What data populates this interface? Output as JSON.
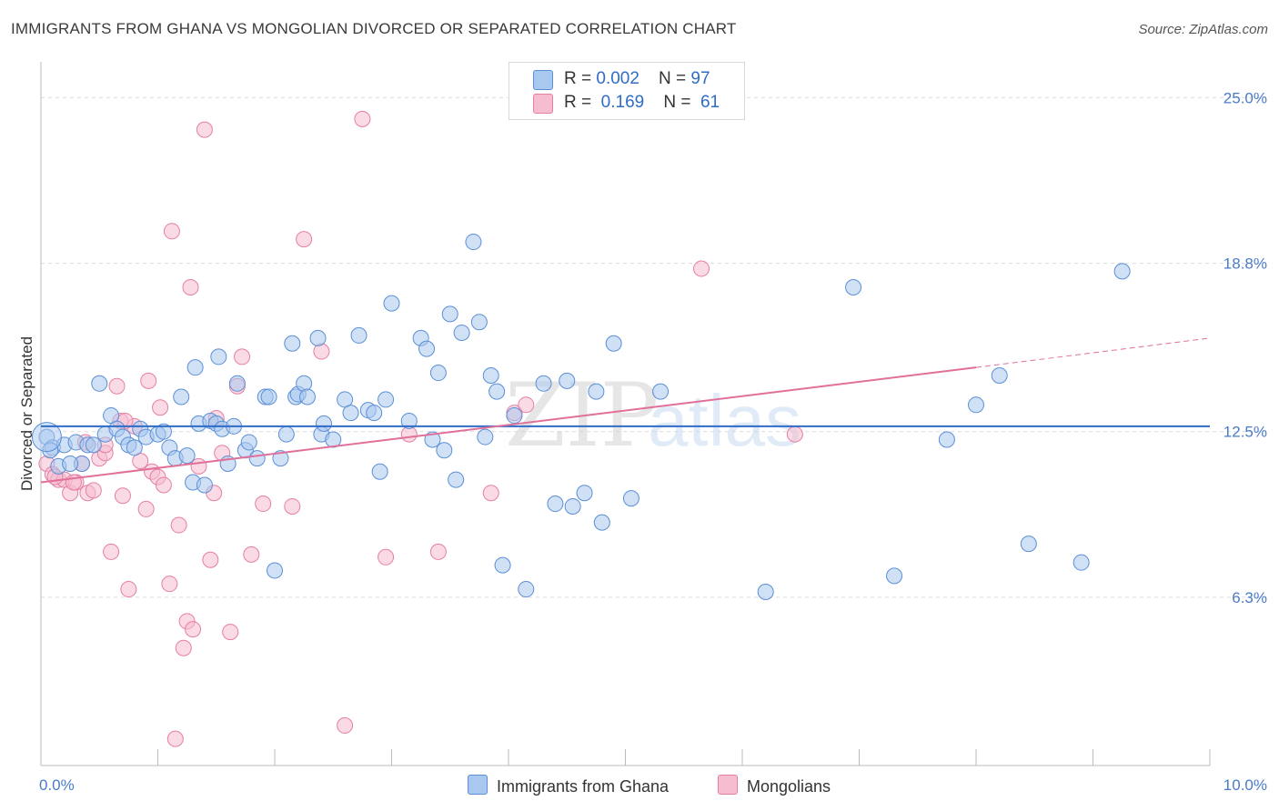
{
  "title": "IMMIGRANTS FROM GHANA VS MONGOLIAN DIVORCED OR SEPARATED CORRELATION CHART",
  "source": "Source: ZipAtlas.com",
  "watermark": {
    "zip": "ZIP",
    "atlas": "atlas"
  },
  "legend": {
    "rows": [
      {
        "r_label": "R = ",
        "r_value": "0.002",
        "n_label": "N = ",
        "n_value": "97"
      },
      {
        "r_label": "R = ",
        "r_value": "0.169",
        "n_label": "N = ",
        "n_value": "61"
      }
    ]
  },
  "bottom_legend": [
    "Immigrants from Ghana",
    "Mongolians"
  ],
  "colors": {
    "blue_fill": "#a9c8ef",
    "blue_stroke": "#5b8fd6",
    "blue_line": "#2f6cc7",
    "pink_fill": "#f6bcd0",
    "pink_stroke": "#e67fa3",
    "pink_line": "#e0709a",
    "grid": "#dcdcdc",
    "tick_label": "#4a7bc8"
  },
  "chart_data": {
    "type": "scatter",
    "title": "IMMIGRANTS FROM GHANA VS MONGOLIAN DIVORCED OR SEPARATED CORRELATION CHART",
    "xlabel": "",
    "ylabel": "Divorced or Separated",
    "xlim": [
      0,
      10
    ],
    "ylim": [
      0,
      26
    ],
    "x_tick_labels": [
      "0.0%",
      "10.0%"
    ],
    "y_ticks": [
      6.3,
      12.5,
      18.8,
      25.0
    ],
    "y_tick_labels": [
      "6.3%",
      "12.5%",
      "18.8%",
      "25.0%"
    ],
    "grid": true,
    "legend_placement": "top-center",
    "series": [
      {
        "name": "Immigrants from Ghana",
        "R": 0.002,
        "N": 97,
        "trend": {
          "x": [
            0,
            10
          ],
          "y": [
            12.7,
            12.7
          ]
        },
        "points": [
          [
            0.05,
            12.3
          ],
          [
            0.1,
            11.9
          ],
          [
            0.15,
            11.2
          ],
          [
            0.2,
            12.0
          ],
          [
            0.3,
            12.1
          ],
          [
            0.35,
            11.3
          ],
          [
            0.4,
            12.0
          ],
          [
            0.45,
            12.0
          ],
          [
            0.5,
            14.3
          ],
          [
            0.55,
            12.4
          ],
          [
            0.6,
            13.1
          ],
          [
            0.65,
            12.6
          ],
          [
            0.7,
            12.3
          ],
          [
            0.75,
            12.0
          ],
          [
            0.8,
            11.9
          ],
          [
            0.85,
            12.6
          ],
          [
            0.9,
            12.3
          ],
          [
            1.0,
            12.4
          ],
          [
            1.05,
            12.5
          ],
          [
            1.1,
            11.9
          ],
          [
            1.15,
            11.5
          ],
          [
            1.2,
            13.8
          ],
          [
            1.25,
            11.6
          ],
          [
            1.3,
            10.6
          ],
          [
            1.32,
            14.9
          ],
          [
            1.35,
            12.8
          ],
          [
            1.4,
            10.5
          ],
          [
            1.45,
            12.9
          ],
          [
            1.5,
            12.8
          ],
          [
            1.52,
            15.3
          ],
          [
            1.55,
            12.6
          ],
          [
            1.6,
            11.3
          ],
          [
            1.65,
            12.7
          ],
          [
            1.68,
            14.3
          ],
          [
            1.75,
            11.8
          ],
          [
            1.78,
            12.1
          ],
          [
            1.85,
            11.5
          ],
          [
            1.92,
            13.8
          ],
          [
            1.95,
            13.8
          ],
          [
            2.0,
            7.3
          ],
          [
            2.05,
            11.5
          ],
          [
            2.1,
            12.4
          ],
          [
            2.15,
            15.8
          ],
          [
            2.18,
            13.8
          ],
          [
            2.2,
            13.9
          ],
          [
            2.25,
            14.3
          ],
          [
            2.28,
            13.8
          ],
          [
            2.37,
            16.0
          ],
          [
            2.4,
            12.4
          ],
          [
            2.42,
            12.8
          ],
          [
            2.5,
            12.2
          ],
          [
            2.6,
            13.7
          ],
          [
            2.65,
            13.2
          ],
          [
            2.72,
            16.1
          ],
          [
            2.8,
            13.3
          ],
          [
            2.85,
            13.2
          ],
          [
            2.9,
            11.0
          ],
          [
            2.95,
            13.7
          ],
          [
            3.0,
            17.3
          ],
          [
            3.15,
            12.9
          ],
          [
            3.25,
            16.0
          ],
          [
            3.3,
            15.6
          ],
          [
            3.35,
            12.2
          ],
          [
            3.4,
            14.7
          ],
          [
            3.45,
            11.8
          ],
          [
            3.5,
            16.9
          ],
          [
            3.55,
            10.7
          ],
          [
            3.6,
            16.2
          ],
          [
            3.7,
            19.6
          ],
          [
            3.75,
            16.6
          ],
          [
            3.8,
            12.3
          ],
          [
            3.85,
            14.6
          ],
          [
            3.9,
            14.0
          ],
          [
            3.95,
            7.5
          ],
          [
            4.05,
            13.1
          ],
          [
            4.15,
            6.6
          ],
          [
            4.3,
            14.3
          ],
          [
            4.4,
            9.8
          ],
          [
            4.5,
            14.4
          ],
          [
            4.55,
            9.7
          ],
          [
            4.65,
            10.2
          ],
          [
            4.75,
            14.0
          ],
          [
            4.8,
            9.1
          ],
          [
            4.9,
            15.8
          ],
          [
            5.05,
            10.0
          ],
          [
            5.3,
            14.0
          ],
          [
            6.2,
            6.5
          ],
          [
            6.95,
            17.9
          ],
          [
            7.3,
            7.1
          ],
          [
            7.75,
            12.2
          ],
          [
            8.0,
            13.5
          ],
          [
            8.2,
            14.6
          ],
          [
            8.45,
            8.3
          ],
          [
            8.9,
            7.6
          ],
          [
            9.25,
            18.5
          ],
          [
            0.08,
            11.8
          ],
          [
            0.25,
            11.3
          ]
        ]
      },
      {
        "name": "Mongolians",
        "R": 0.169,
        "N": 61,
        "trend": {
          "x": [
            0,
            8
          ],
          "y": [
            10.6,
            14.9
          ]
        },
        "trend_dashed": {
          "x": [
            8,
            10
          ],
          "y": [
            14.9,
            16.0
          ]
        },
        "points": [
          [
            0.05,
            11.3
          ],
          [
            0.1,
            10.9
          ],
          [
            0.15,
            10.7
          ],
          [
            0.2,
            10.7
          ],
          [
            0.25,
            10.2
          ],
          [
            0.3,
            10.6
          ],
          [
            0.35,
            11.3
          ],
          [
            0.38,
            12.1
          ],
          [
            0.4,
            10.2
          ],
          [
            0.45,
            10.3
          ],
          [
            0.5,
            11.5
          ],
          [
            0.55,
            11.7
          ],
          [
            0.6,
            8.0
          ],
          [
            0.65,
            14.2
          ],
          [
            0.68,
            12.9
          ],
          [
            0.7,
            10.1
          ],
          [
            0.75,
            6.6
          ],
          [
            0.8,
            12.7
          ],
          [
            0.85,
            11.4
          ],
          [
            0.9,
            9.6
          ],
          [
            0.92,
            14.4
          ],
          [
            0.95,
            11.0
          ],
          [
            1.0,
            10.8
          ],
          [
            1.02,
            13.4
          ],
          [
            1.05,
            10.5
          ],
          [
            1.1,
            6.8
          ],
          [
            1.12,
            20.0
          ],
          [
            1.15,
            1.0
          ],
          [
            1.18,
            9.0
          ],
          [
            1.22,
            4.4
          ],
          [
            1.25,
            5.4
          ],
          [
            1.28,
            17.9
          ],
          [
            1.3,
            5.1
          ],
          [
            1.35,
            11.2
          ],
          [
            1.4,
            23.8
          ],
          [
            1.45,
            7.7
          ],
          [
            1.48,
            10.2
          ],
          [
            1.5,
            13.0
          ],
          [
            1.55,
            11.7
          ],
          [
            1.62,
            5.0
          ],
          [
            1.68,
            14.2
          ],
          [
            1.72,
            15.3
          ],
          [
            1.8,
            7.9
          ],
          [
            1.9,
            9.8
          ],
          [
            2.15,
            9.7
          ],
          [
            2.25,
            19.7
          ],
          [
            2.4,
            15.5
          ],
          [
            2.6,
            1.5
          ],
          [
            2.75,
            24.2
          ],
          [
            2.95,
            7.8
          ],
          [
            3.15,
            12.4
          ],
          [
            3.4,
            8.0
          ],
          [
            3.85,
            10.2
          ],
          [
            4.05,
            13.2
          ],
          [
            4.15,
            13.5
          ],
          [
            5.65,
            18.6
          ],
          [
            6.45,
            12.4
          ],
          [
            0.12,
            10.8
          ],
          [
            0.28,
            10.6
          ],
          [
            0.55,
            12.0
          ],
          [
            0.72,
            12.9
          ]
        ]
      }
    ]
  }
}
